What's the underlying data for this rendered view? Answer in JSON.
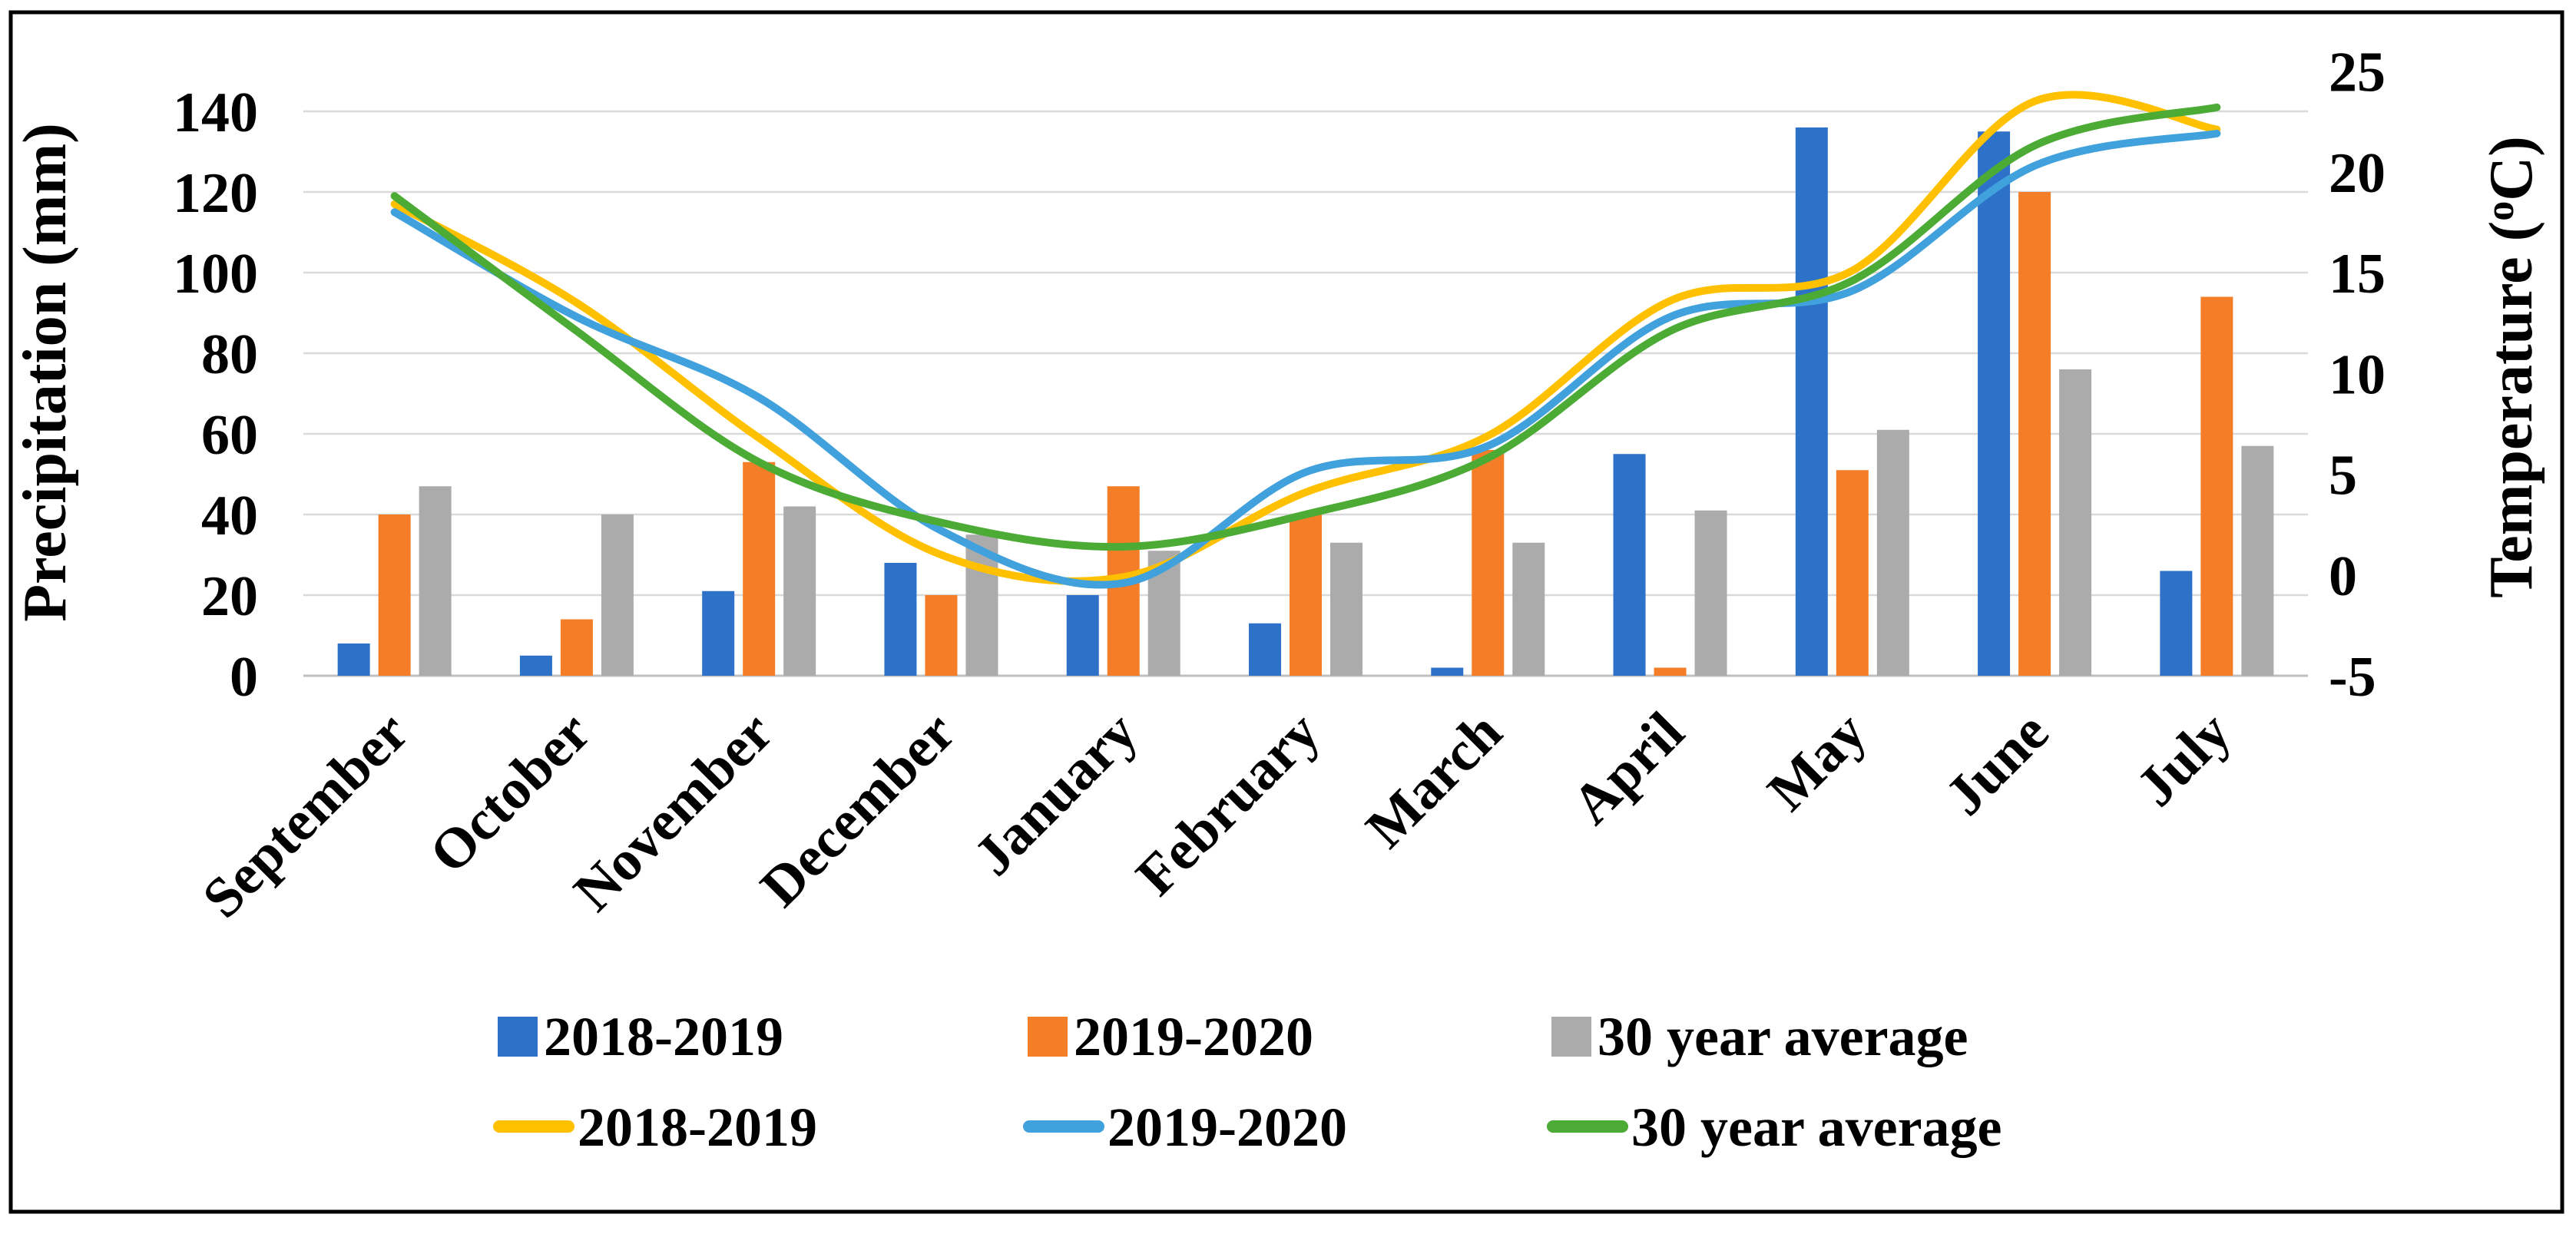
{
  "chart_data": {
    "type": "combo-bar-line",
    "categories": [
      "September",
      "October",
      "November",
      "December",
      "January",
      "February",
      "March",
      "April",
      "May",
      "June",
      "July"
    ],
    "bar_series": [
      {
        "name": "2018-2019",
        "color": "#2D72C8",
        "unit": "mm",
        "values": [
          8,
          5,
          21,
          28,
          20,
          13,
          2,
          55,
          136,
          135,
          26
        ]
      },
      {
        "name": "2019-2020",
        "color": "#F47E27",
        "unit": "mm",
        "values": [
          40,
          14,
          53,
          20,
          47,
          40,
          56,
          2,
          51,
          120,
          94
        ]
      },
      {
        "name": "30 year average",
        "color": "#ABABAB",
        "unit": "mm",
        "values": [
          47,
          40,
          42,
          35,
          31,
          33,
          33,
          41,
          61,
          76,
          57
        ]
      }
    ],
    "line_series": [
      {
        "name": "2018-2019",
        "color": "#FFC000",
        "unit": "degC",
        "values": [
          18.4,
          13.5,
          6.8,
          1.0,
          -0.1,
          4.1,
          6.9,
          13.6,
          15.1,
          23.5,
          22.1
        ]
      },
      {
        "name": "2019-2020",
        "color": "#41A1DC",
        "unit": "degC",
        "values": [
          18.0,
          12.8,
          8.8,
          2.2,
          -0.4,
          5.1,
          6.4,
          12.8,
          14.1,
          20.3,
          21.9
        ]
      },
      {
        "name": "30 year average",
        "color": "#4CAB35",
        "unit": "degC",
        "values": [
          18.8,
          12.1,
          5.6,
          2.6,
          1.4,
          3.0,
          5.8,
          12.1,
          14.6,
          21.3,
          23.2
        ]
      }
    ],
    "ylabel": "Precipitation (mm)",
    "y2label_parts": {
      "pre": "Temperature (",
      "sup": "o",
      "post": "C)"
    },
    "y_axis": {
      "min": 0,
      "plot_max": 150,
      "tick_step": 20,
      "ticks": [
        0,
        20,
        40,
        60,
        80,
        100,
        120,
        140
      ]
    },
    "y2_axis": {
      "min": -5,
      "max": 25,
      "tick_step": 5,
      "ticks": [
        25,
        20,
        15,
        10,
        5,
        0,
        -5
      ]
    },
    "grid": "horizontal",
    "legend_position": "bottom"
  },
  "styles": {
    "grid_color": "#D9D9D9",
    "axis_line_color": "#BFBFBF",
    "text_color": "#000000",
    "background": "#FFFFFF",
    "border_color": "#000000"
  }
}
